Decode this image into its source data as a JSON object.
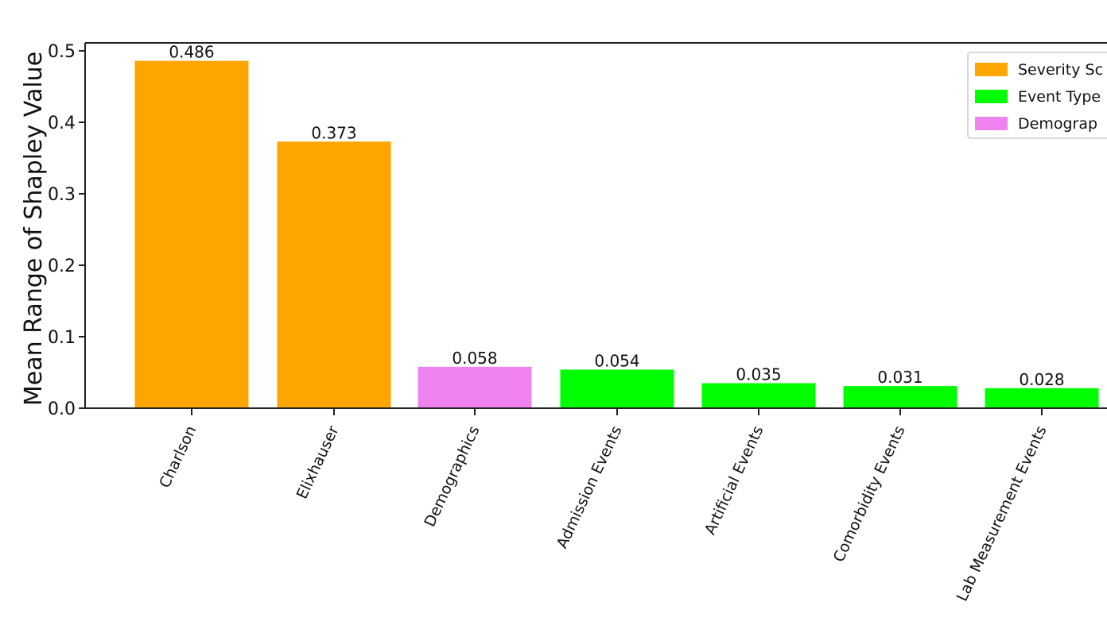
{
  "chart_data": {
    "type": "bar",
    "title": "",
    "xlabel": "",
    "ylabel": "Mean Range of Shapley Value",
    "ylim": [
      0,
      0.5
    ],
    "yticks": [
      "0.0",
      "0.1",
      "0.2",
      "0.3",
      "0.4",
      "0.5"
    ],
    "grid": false,
    "legend_position": "top-right",
    "categories": [
      "Charlson",
      "Elixhauser",
      "Demographics",
      "Admission Events",
      "Artificial Events",
      "Comorbidity Events",
      "Lab Measurement Events"
    ],
    "values": [
      0.486,
      0.373,
      0.058,
      0.054,
      0.035,
      0.031,
      0.028
    ],
    "value_labels": [
      "0.486",
      "0.373",
      "0.058",
      "0.054",
      "0.035",
      "0.031",
      "0.028"
    ],
    "bar_groups": [
      "Severity Score",
      "Severity Score",
      "Demographics",
      "Event Type",
      "Event Type",
      "Event Type",
      "Event Type"
    ],
    "legend": [
      {
        "label": "Severity Sc",
        "color": "#FFA500"
      },
      {
        "label": "Event Type",
        "color": "#00FF00"
      },
      {
        "label": "Demograp",
        "color": "#EE82EE"
      }
    ],
    "group_colors": {
      "Severity Score": "#FFA500",
      "Event Type": "#00FF00",
      "Demographics": "#EE82EE"
    }
  }
}
